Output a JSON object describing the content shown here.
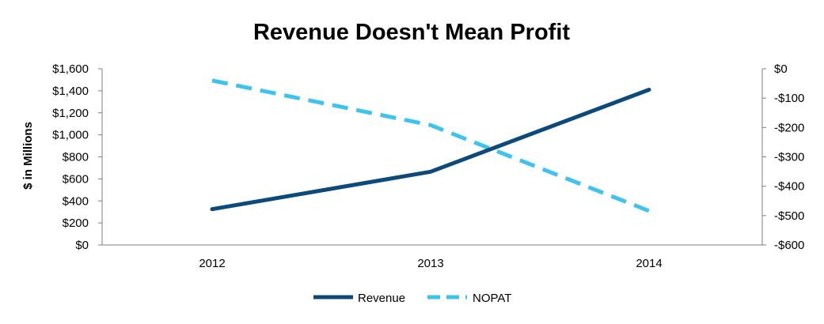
{
  "chart_data": {
    "type": "line",
    "title": "Revenue Doesn't Mean Profit",
    "ylabel": "$ in Millions",
    "y2label": "",
    "categories": [
      "2012",
      "2013",
      "2014"
    ],
    "ylim": [
      0,
      1600
    ],
    "y2lim": [
      -600,
      0
    ],
    "yticks": [
      "$0",
      "$200",
      "$400",
      "$600",
      "$800",
      "$1,000",
      "$1,200",
      "$1,400",
      "$1,600"
    ],
    "y2ticks": [
      "-$600",
      "-$500",
      "-$400",
      "-$300",
      "-$200",
      "-$100",
      "$0"
    ],
    "series": [
      {
        "name": "Revenue",
        "axis": "left",
        "style": "solid",
        "color": "#0b4a7a",
        "values": [
          325,
          665,
          1410
        ]
      },
      {
        "name": "NOPAT",
        "axis": "right",
        "style": "dashed",
        "color": "#3ec3f0",
        "values": [
          -40,
          -192,
          -484
        ]
      }
    ],
    "legend_position": "bottom",
    "grid": false
  }
}
